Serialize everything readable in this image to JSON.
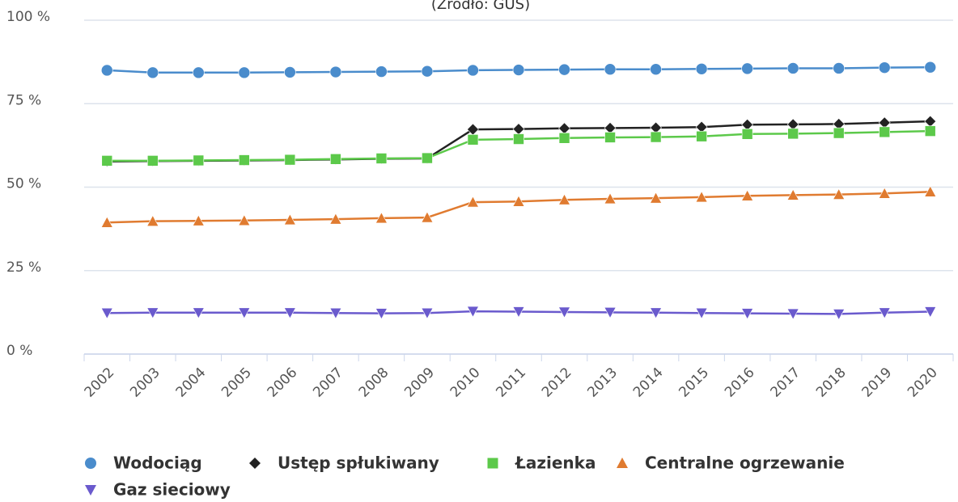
{
  "chart_data": {
    "type": "line",
    "subtitle": "(Źródło: GUS)",
    "categories": [
      "2002",
      "2003",
      "2004",
      "2005",
      "2006",
      "2007",
      "2008",
      "2009",
      "2010",
      "2011",
      "2012",
      "2013",
      "2014",
      "2015",
      "2016",
      "2017",
      "2018",
      "2019",
      "2020"
    ],
    "ylim": [
      0,
      100
    ],
    "yticks": [
      {
        "value": 0,
        "label": "0 %"
      },
      {
        "value": 25,
        "label": "25 %"
      },
      {
        "value": 50,
        "label": "50 %"
      },
      {
        "value": 75,
        "label": "75 %"
      },
      {
        "value": 100,
        "label": "100 %"
      }
    ],
    "grid": true,
    "legend": "bottom",
    "series": [
      {
        "name": "Wodociąg",
        "color": "#4a8ccc",
        "marker": "circle",
        "values": [
          85.0,
          84.3,
          84.3,
          84.3,
          84.4,
          84.5,
          84.6,
          84.7,
          85.0,
          85.1,
          85.2,
          85.3,
          85.3,
          85.4,
          85.5,
          85.6,
          85.6,
          85.8,
          85.9
        ]
      },
      {
        "name": "Ustęp spłukiwany",
        "color": "#222222",
        "marker": "diamond",
        "values": [
          57.7,
          57.8,
          57.9,
          58.0,
          58.1,
          58.3,
          58.5,
          58.6,
          67.3,
          67.4,
          67.6,
          67.7,
          67.8,
          68.0,
          68.7,
          68.8,
          68.9,
          69.3,
          69.7
        ]
      },
      {
        "name": "Łazienka",
        "color": "#5cc94a",
        "marker": "square",
        "values": [
          57.9,
          57.9,
          58.0,
          58.1,
          58.2,
          58.4,
          58.6,
          58.7,
          64.2,
          64.4,
          64.7,
          64.9,
          65.0,
          65.2,
          65.9,
          66.0,
          66.2,
          66.5,
          66.8
        ]
      },
      {
        "name": "Centralne ogrzewanie",
        "color": "#e07b30",
        "marker": "triangle",
        "values": [
          39.4,
          39.8,
          39.9,
          40.0,
          40.2,
          40.4,
          40.7,
          40.9,
          45.5,
          45.7,
          46.2,
          46.5,
          46.7,
          47.0,
          47.4,
          47.6,
          47.8,
          48.1,
          48.6
        ]
      },
      {
        "name": "Gaz sieciowy",
        "color": "#6a5acd",
        "marker": "triangle-down",
        "values": [
          12.3,
          12.4,
          12.4,
          12.4,
          12.4,
          12.3,
          12.2,
          12.3,
          12.8,
          12.7,
          12.6,
          12.5,
          12.4,
          12.3,
          12.2,
          12.1,
          12.0,
          12.4,
          12.7
        ]
      }
    ]
  }
}
